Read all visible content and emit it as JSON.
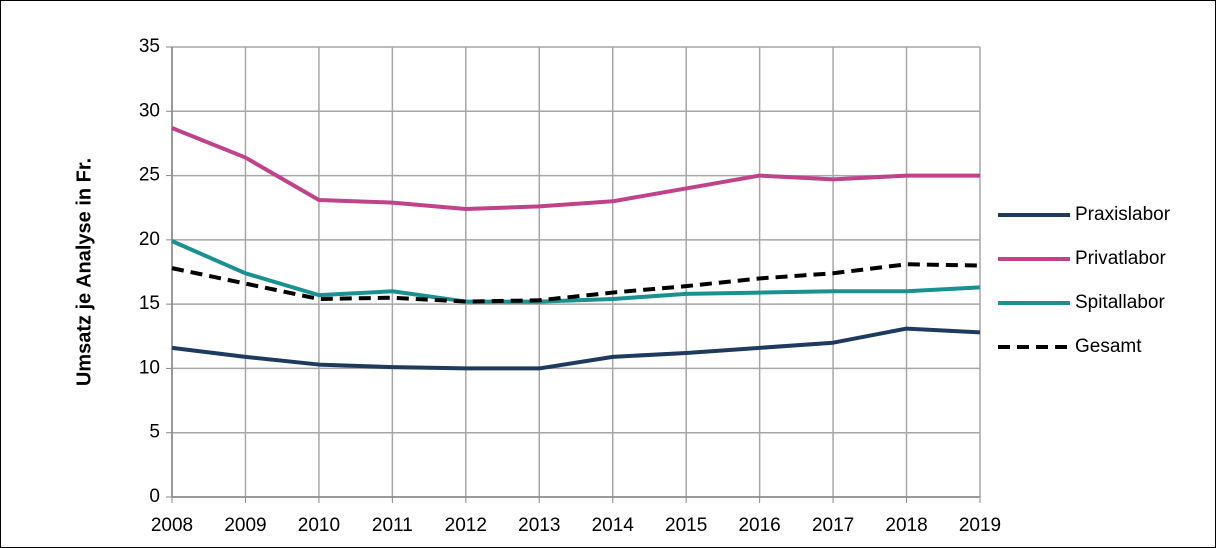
{
  "chart_data": {
    "type": "line",
    "y_label": "Umsatz je Analyse in Fr.",
    "x": [
      2008,
      2009,
      2010,
      2011,
      2012,
      2013,
      2014,
      2015,
      2016,
      2017,
      2018,
      2019
    ],
    "xlim": [
      2008,
      2019
    ],
    "xticks": [
      2008,
      2009,
      2010,
      2011,
      2012,
      2013,
      2014,
      2015,
      2016,
      2017,
      2018,
      2019
    ],
    "ylim": [
      0,
      35
    ],
    "yticks": [
      0,
      5,
      10,
      15,
      20,
      25,
      30,
      35
    ],
    "grid": true,
    "legend": "right",
    "series": [
      {
        "name": "Praxislabor",
        "color": "#1f3a5f",
        "dash": false,
        "values": [
          11.6,
          10.9,
          10.3,
          10.1,
          10.0,
          10.0,
          10.9,
          11.2,
          11.6,
          12.0,
          13.1,
          12.8
        ]
      },
      {
        "name": "Privatlabor",
        "color": "#c0428a",
        "dash": false,
        "values": [
          28.7,
          26.4,
          23.1,
          22.9,
          22.4,
          22.6,
          23.0,
          24.0,
          25.0,
          24.7,
          25.0,
          25.0
        ]
      },
      {
        "name": "Spitallabor",
        "color": "#1a9090",
        "dash": false,
        "values": [
          19.9,
          17.4,
          15.7,
          16.0,
          15.2,
          15.2,
          15.4,
          15.8,
          15.9,
          16.0,
          16.0,
          16.3
        ]
      },
      {
        "name": "Gesamt",
        "color": "#000000",
        "dash": true,
        "values": [
          17.8,
          16.6,
          15.4,
          15.5,
          15.2,
          15.3,
          15.9,
          16.4,
          17.0,
          17.4,
          18.1,
          18.0
        ]
      }
    ]
  }
}
